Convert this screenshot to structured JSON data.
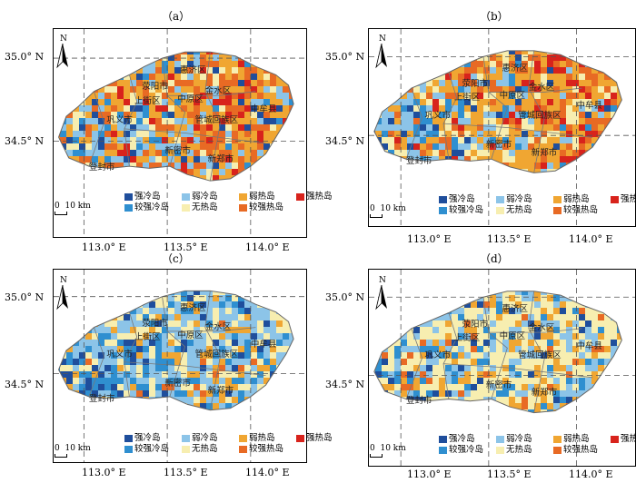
{
  "panels": [
    {
      "id": "a",
      "label": "（a）",
      "variant": "a"
    },
    {
      "id": "b",
      "label": "（b）",
      "variant": "b"
    },
    {
      "id": "c",
      "label": "（c）",
      "variant": "c"
    },
    {
      "id": "d",
      "label": "（d）",
      "variant": "d"
    }
  ],
  "lat_labels": [
    "35.0° N",
    "34.5° N"
  ],
  "lon_labels": [
    "113.0° E",
    "113.5° E",
    "114.0° E"
  ],
  "north": "N",
  "scale": "10 km",
  "scale_zero": "0",
  "legend": [
    {
      "label": "强冷岛",
      "color": "#1f4e9c"
    },
    {
      "label": "弱冷岛",
      "color": "#8cc4e8"
    },
    {
      "label": "弱热岛",
      "color": "#f0a632"
    },
    {
      "label": "强热岛",
      "color": "#d8231c"
    },
    {
      "label": "较强冷岛",
      "color": "#2f8fd0"
    },
    {
      "label": "无热岛",
      "color": "#f7eeb0"
    },
    {
      "label": "较强热岛",
      "color": "#e86a24"
    }
  ],
  "cities": [
    "荥阳市",
    "惠济区",
    "上街区",
    "中原区",
    "金水区",
    "巩义市",
    "管城回族区",
    "中牟县",
    "新密市",
    "新郑市",
    "登封市"
  ]
}
